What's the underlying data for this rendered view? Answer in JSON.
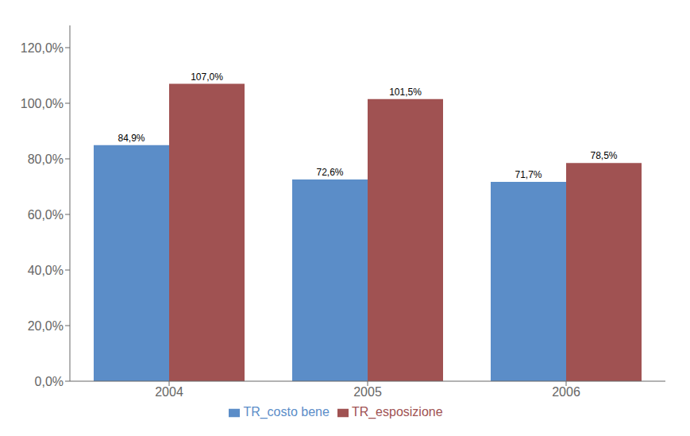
{
  "chart_data": {
    "type": "bar",
    "categories": [
      "2004",
      "2005",
      "2006"
    ],
    "series": [
      {
        "name": "TR_costo bene",
        "color": "#5B8DC8",
        "values": [
          0.849,
          0.726,
          0.717
        ],
        "value_labels": [
          "84,9%",
          "72,6%",
          "71,7%"
        ]
      },
      {
        "name": "TR_esposizione",
        "color": "#A05252",
        "values": [
          1.07,
          1.015,
          0.785
        ],
        "value_labels": [
          "107,0%",
          "101,5%",
          "78,5%"
        ]
      }
    ],
    "ylim": [
      0,
      1.28
    ],
    "yticks": [
      {
        "value": 0.0,
        "label": "0,0%"
      },
      {
        "value": 0.2,
        "label": "20,0%"
      },
      {
        "value": 0.4,
        "label": "40,0%"
      },
      {
        "value": 0.6,
        "label": "60,0%"
      },
      {
        "value": 0.8,
        "label": "80,0%"
      },
      {
        "value": 1.0,
        "label": "100,0%"
      },
      {
        "value": 1.2,
        "label": "120,0%"
      }
    ],
    "grid": false,
    "legend": "bottom",
    "data_labels": true
  }
}
